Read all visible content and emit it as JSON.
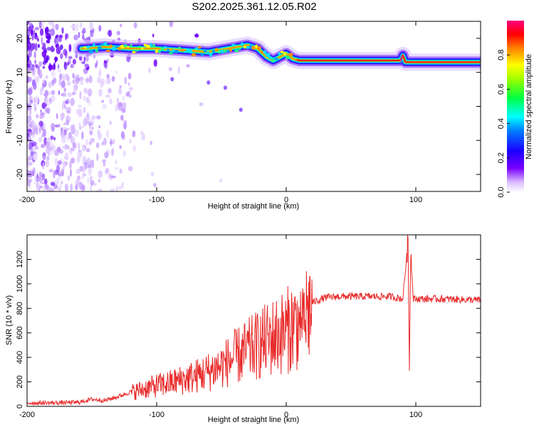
{
  "title": "S202.2025.361.12.05.R02",
  "colors": {
    "trace": "#e82a2a",
    "ridge_red": "#ff2020",
    "axis": "#000000"
  },
  "spectrogram": {
    "xlabel": "Height of straight line (km)",
    "ylabel": "Frequency (Hz)",
    "xlim": [
      -200,
      150
    ],
    "ylim": [
      -25,
      25
    ],
    "xticks": [
      "-200",
      "-100",
      "0",
      "100"
    ],
    "yticks": [
      "-20",
      "-10",
      "0",
      "10",
      "20"
    ],
    "colorbar": {
      "label": "Normalized spectral amplitude",
      "range": [
        0,
        1
      ],
      "ticks": [
        "0.0",
        "0.2",
        "0.4",
        "0.6",
        "0.8"
      ],
      "colormap": "rainbow (white-violet-blue-cyan-green-yellow-red-magenta)"
    }
  },
  "snr": {
    "xlabel": "Height of straight line (km)",
    "ylabel": "SNR (10 * v/v)",
    "xlim": [
      -200,
      150
    ],
    "ylim": [
      0,
      1400
    ],
    "xticks": [
      "-200",
      "-100",
      "0",
      "100"
    ],
    "yticks": [
      "0",
      "200",
      "400",
      "600",
      "800",
      "1000",
      "1200"
    ]
  },
  "chart_data": [
    {
      "type": "heatmap",
      "title": "S202.2025.361.12.05.R02",
      "xlabel": "Height of straight line (km)",
      "ylabel": "Frequency (Hz)",
      "xlim": [
        -200,
        150
      ],
      "ylim": [
        -25,
        25
      ],
      "ridge": {
        "x": [
          -155,
          -140,
          -120,
          -100,
          -80,
          -60,
          -45,
          -30,
          -22,
          -15,
          -10,
          -5,
          0,
          5,
          10,
          30,
          60,
          88,
          90,
          92,
          100,
          120,
          150
        ],
        "y": [
          17,
          17.5,
          17,
          17,
          16.5,
          16,
          17,
          18,
          17,
          14.5,
          13.5,
          14.5,
          15.5,
          14,
          13.5,
          13.5,
          13.5,
          13.5,
          15,
          13,
          13,
          13,
          13
        ]
      },
      "noise_region_x": [
        -200,
        -120
      ]
    },
    {
      "type": "line",
      "xlabel": "Height of straight line (km)",
      "ylabel": "SNR (10 * v/v)",
      "xlim": [
        -200,
        150
      ],
      "ylim": [
        0,
        1400
      ],
      "grid": false,
      "series": [
        {
          "x": [
            -200,
            -180,
            -160,
            -150,
            -140,
            -130,
            -120,
            -110,
            -100,
            -90,
            -80,
            -70,
            -60,
            -50,
            -40,
            -30,
            -20,
            -10,
            0,
            5,
            10,
            12,
            14,
            20,
            30,
            40,
            60,
            80,
            90,
            94,
            95,
            96,
            98,
            100,
            120,
            150
          ],
          "y": [
            30,
            30,
            35,
            60,
            50,
            80,
            120,
            150,
            180,
            200,
            230,
            260,
            300,
            350,
            420,
            480,
            540,
            600,
            650,
            700,
            720,
            750,
            800,
            850,
            890,
            900,
            900,
            900,
            880,
            1350,
            330,
            1280,
            880,
            880,
            880,
            870
          ]
        }
      ]
    }
  ]
}
